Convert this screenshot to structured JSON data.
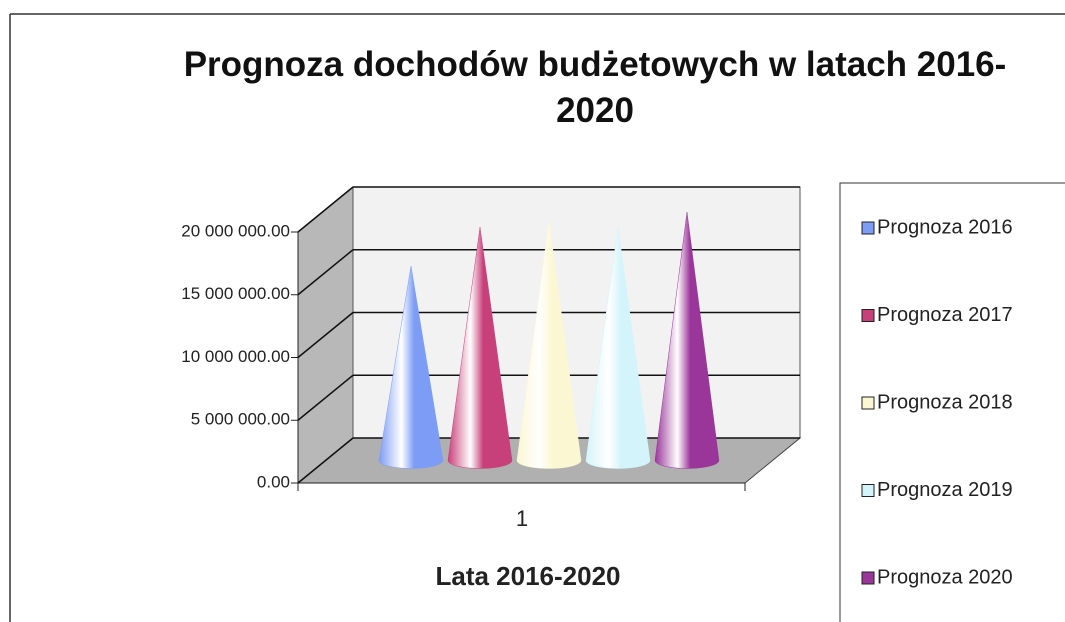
{
  "chart_data": {
    "type": "cone",
    "title": "Prognoza dochodów budżetowych w latach 2016-2020",
    "x_label": "Lata 2016-2020",
    "categories": [
      "1"
    ],
    "series": [
      {
        "name": "Prognoza 2016",
        "color": "#7d9cf5",
        "values": [
          15500000
        ]
      },
      {
        "name": "Prognoza 2017",
        "color": "#c8407a",
        "values": [
          18600000
        ]
      },
      {
        "name": "Prognoza 2018",
        "color": "#fbf7d2",
        "values": [
          19100000
        ]
      },
      {
        "name": "Prognoza 2019",
        "color": "#d4f4fb",
        "values": [
          18600000
        ]
      },
      {
        "name": "Prognoza 2020",
        "color": "#9a3599",
        "values": [
          19800000
        ]
      }
    ],
    "ylim": [
      0,
      20000000
    ],
    "yticks": [
      {
        "value": 0,
        "label": "0.00"
      },
      {
        "value": 5000000,
        "label": "5 000 000.00"
      },
      {
        "value": 10000000,
        "label": "10 000 000.00"
      },
      {
        "value": 15000000,
        "label": "15 000 000.00"
      },
      {
        "value": 20000000,
        "label": "20 000 000.00"
      }
    ],
    "grid": true,
    "legend": "right"
  }
}
